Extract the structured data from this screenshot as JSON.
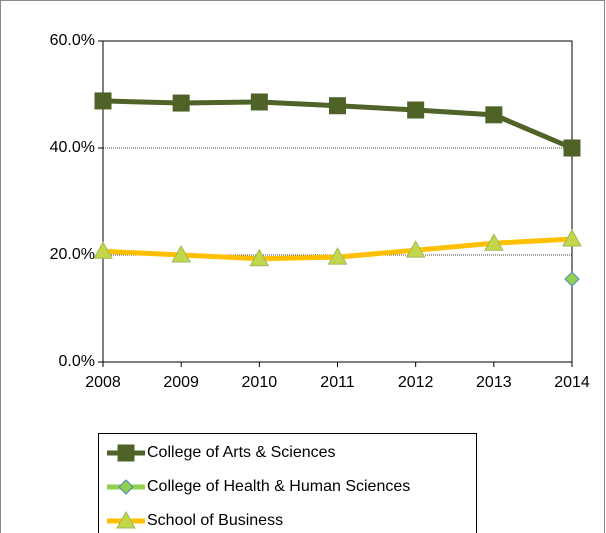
{
  "chart_data": {
    "type": "line",
    "categories": [
      "2008",
      "2009",
      "2010",
      "2011",
      "2012",
      "2013",
      "2014"
    ],
    "series": [
      {
        "name": "College of Arts & Sciences",
        "color": "#4f6228",
        "marker": "square",
        "marker_fill": "#4f6228",
        "values": [
          48.8,
          48.4,
          48.6,
          47.9,
          47.1,
          46.2,
          40.0
        ]
      },
      {
        "name": "College of Health & Human Sciences",
        "color": "#92d050",
        "marker": "diamond",
        "marker_fill": "#92d050",
        "values": [
          null,
          null,
          null,
          null,
          null,
          null,
          15.5
        ]
      },
      {
        "name": "School of Business",
        "color": "#ffc000",
        "marker": "triangle",
        "marker_fill": "#c4d64a",
        "values": [
          20.7,
          20.0,
          19.3,
          19.6,
          20.9,
          22.2,
          23.0
        ]
      }
    ],
    "ylim": [
      0,
      60
    ],
    "yticks": [
      {
        "value": 0,
        "label": "0.0%"
      },
      {
        "value": 20,
        "label": "20.0%"
      },
      {
        "value": 40,
        "label": "40.0%"
      },
      {
        "value": 60,
        "label": "60.0%"
      }
    ],
    "grid": true,
    "legend": "bottom"
  }
}
